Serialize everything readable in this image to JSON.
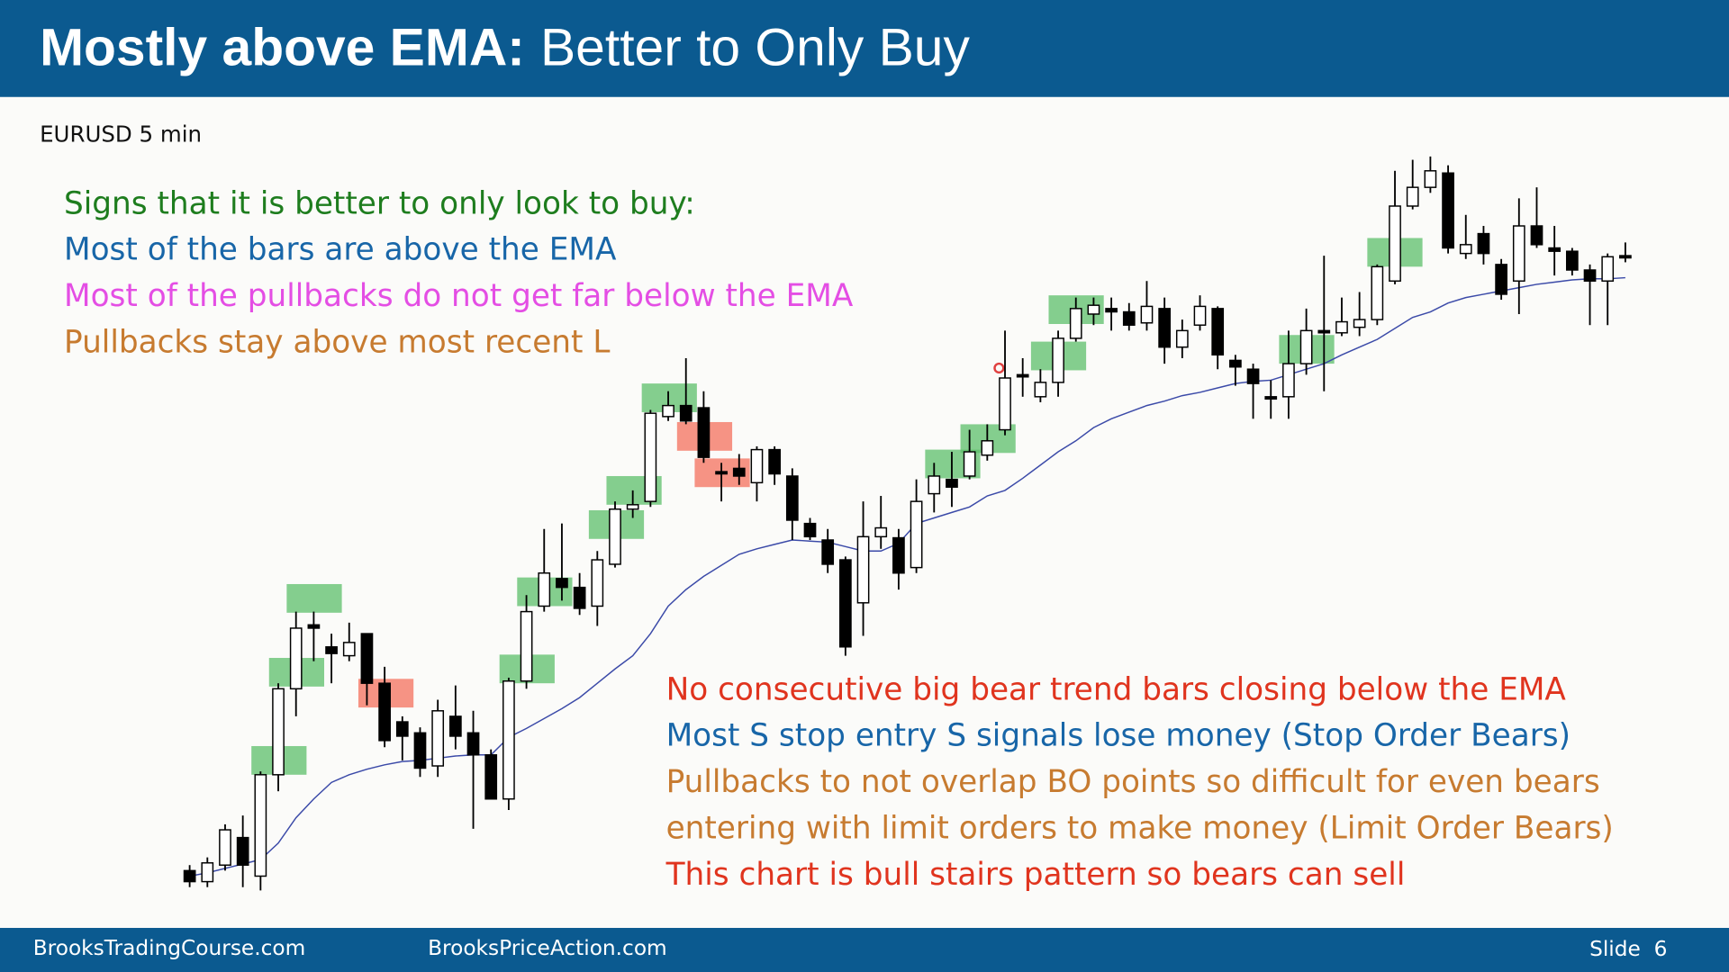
{
  "header": {
    "title_bold": "Mostly above EMA:",
    "title_rest": "Better to Only Buy"
  },
  "chart_data": {
    "type": "candlestick",
    "subtitle": "EURUSD 5 min",
    "notes_left": [
      {
        "text": "Signs that it is better to only look to buy:",
        "color": "#1e7d1e"
      },
      {
        "text": "Most of the bars are above the EMA",
        "color": "#1866a8"
      },
      {
        "text": "Most of the pullbacks do not get far below the EMA",
        "color": "#e44ee4"
      },
      {
        "text": "Pullbacks stay above most recent L",
        "color": "#c77b30"
      }
    ],
    "notes_right": [
      {
        "text": "No consecutive big bear trend bars closing below the EMA",
        "color": "#e0341e"
      },
      {
        "text": "Most S stop entry S signals lose money (Stop Order Bears)",
        "color": "#1866a8"
      },
      {
        "text": "Pullbacks to not overlap BO points so difficult for even bears",
        "color": "#c77b30"
      },
      {
        "text": "entering with limit orders to make money (Limit Order Bears)",
        "color": "#c77b30"
      },
      {
        "text": "This chart is bull stairs pattern so bears can sell",
        "color": "#e0341e"
      }
    ],
    "ylim": [
      0,
      700
    ],
    "open": [
      30,
      20,
      35,
      60,
      25,
      117,
      195,
      253,
      233,
      225,
      245,
      200,
      165,
      155,
      125,
      170,
      155,
      135,
      95,
      202,
      270,
      295,
      287,
      270,
      308,
      358,
      365,
      442,
      452,
      450,
      392,
      395,
      382,
      412,
      388,
      345,
      330,
      312,
      273,
      333,
      332,
      305,
      372,
      385,
      388,
      407,
      430,
      480,
      460,
      473,
      513,
      535,
      540,
      537,
      527,
      540,
      505,
      525,
      540,
      493,
      485,
      460,
      460,
      490,
      520,
      518,
      523,
      530,
      565,
      633,
      650,
      663,
      590,
      608,
      580,
      565,
      615,
      595,
      592,
      575,
      565,
      588
    ],
    "high": [
      35,
      42,
      72,
      80,
      120,
      200,
      265,
      265,
      245,
      255,
      245,
      215,
      170,
      160,
      185,
      198,
      175,
      140,
      205,
      280,
      340,
      345,
      300,
      320,
      365,
      375,
      448,
      465,
      495,
      465,
      400,
      408,
      415,
      415,
      395,
      350,
      340,
      315,
      365,
      370,
      340,
      385,
      400,
      410,
      430,
      435,
      520,
      495,
      485,
      520,
      550,
      550,
      550,
      545,
      565,
      550,
      530,
      552,
      542,
      498,
      490,
      475,
      520,
      540,
      588,
      550,
      555,
      580,
      665,
      675,
      678,
      670,
      625,
      615,
      585,
      640,
      650,
      615,
      595,
      580,
      590,
      600
    ],
    "low": [
      15,
      15,
      30,
      15,
      12,
      102,
      170,
      220,
      200,
      220,
      180,
      142,
      130,
      115,
      115,
      140,
      68,
      95,
      85,
      195,
      265,
      275,
      262,
      252,
      305,
      350,
      360,
      438,
      435,
      400,
      365,
      380,
      365,
      380,
      330,
      330,
      300,
      225,
      243,
      322,
      285,
      300,
      355,
      360,
      385,
      402,
      425,
      460,
      455,
      460,
      510,
      525,
      520,
      520,
      520,
      490,
      495,
      520,
      485,
      470,
      440,
      440,
      440,
      480,
      465,
      515,
      515,
      525,
      562,
      630,
      645,
      590,
      585,
      580,
      548,
      535,
      595,
      570,
      570,
      525,
      525,
      582
    ],
    "close": [
      20,
      37,
      67,
      35,
      117,
      195,
      250,
      250,
      227,
      237,
      200,
      148,
      152,
      123,
      175,
      152,
      135,
      95,
      202,
      265,
      300,
      287,
      268,
      312,
      358,
      362,
      445,
      452,
      438,
      405,
      390,
      388,
      412,
      390,
      348,
      333,
      308,
      233,
      333,
      341,
      300,
      365,
      388,
      378,
      410,
      420,
      477,
      478,
      473,
      513,
      540,
      543,
      537,
      525,
      542,
      505,
      520,
      542,
      498,
      487,
      472,
      458,
      490,
      520,
      518,
      528,
      530,
      578,
      633,
      650,
      665,
      595,
      598,
      590,
      553,
      615,
      598,
      592,
      575,
      565,
      587,
      586
    ],
    "ema": {
      "color": "#3b4aa8",
      "values": [
        25,
        28,
        32,
        36,
        40,
        55,
        78,
        95,
        110,
        117,
        122,
        126,
        129,
        130,
        132,
        134,
        135,
        135,
        151,
        159,
        168,
        177,
        187,
        200,
        213,
        225,
        245,
        270,
        285,
        297,
        307,
        317,
        322,
        326,
        330,
        329,
        328,
        324,
        320,
        320,
        327,
        345,
        350,
        355,
        360,
        370,
        375,
        386,
        398,
        410,
        420,
        432,
        440,
        446,
        452,
        456,
        461,
        464,
        468,
        472,
        474,
        475,
        480,
        485,
        490,
        498,
        505,
        512,
        522,
        532,
        537,
        545,
        550,
        553,
        556,
        559,
        562,
        564,
        566,
        567,
        567,
        568
      ]
    }
  },
  "footer": {
    "left": "BrooksTradingCourse.com",
    "center": "BrooksPriceAction.com",
    "slide": "Slide  6"
  }
}
